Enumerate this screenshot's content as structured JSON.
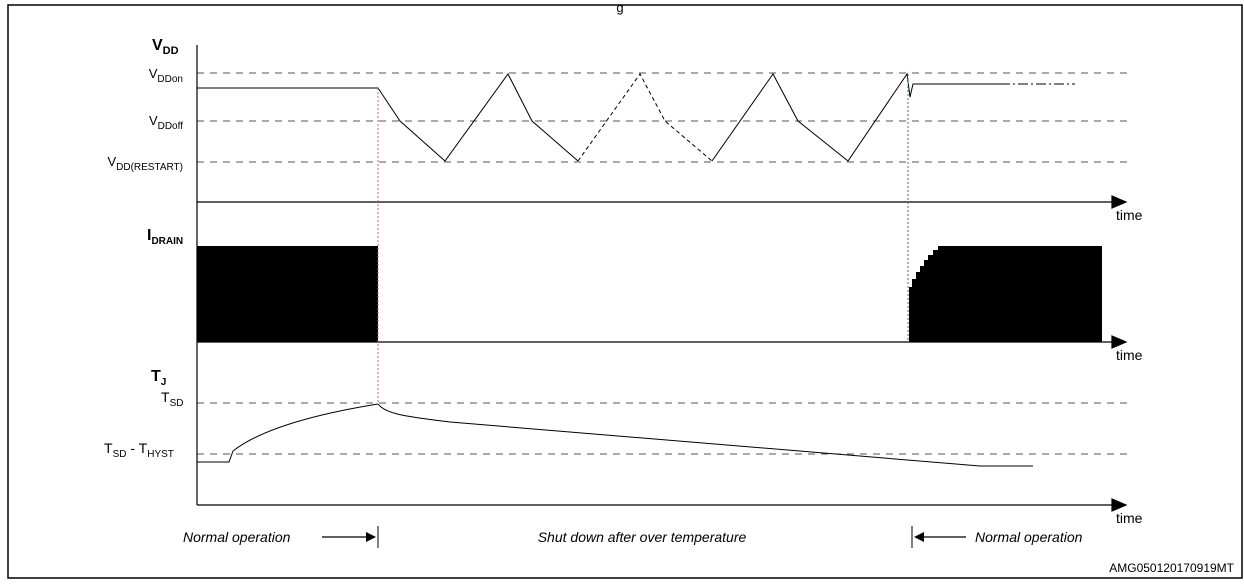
{
  "header_fragment": "g",
  "vdd": {
    "label_main": "V",
    "label_sub": "DD",
    "levels": [
      {
        "main": "V",
        "sub": "DDon"
      },
      {
        "main": "V",
        "sub": "DDoff"
      },
      {
        "main": "V",
        "sub": "DD(RESTART)"
      }
    ]
  },
  "idrain": {
    "label_main": "I",
    "label_sub": "DRAIN"
  },
  "tj": {
    "label_main": "T",
    "label_sub": "J",
    "levels": [
      {
        "main": "T",
        "sub": "SD"
      },
      {
        "main": "T",
        "sub": "SD",
        "minus": " - T",
        "sub2": "HYST"
      }
    ]
  },
  "axis": {
    "time_label": "time"
  },
  "phases": {
    "left": "Normal operation",
    "middle": "Shut down after over temperature",
    "right": "Normal operation"
  },
  "code": "AMG050120170919MT",
  "colors": {
    "line": "#000000",
    "grid": "#555555",
    "red_marker": "#e06060",
    "green_marker": "#3a8a3a"
  }
}
